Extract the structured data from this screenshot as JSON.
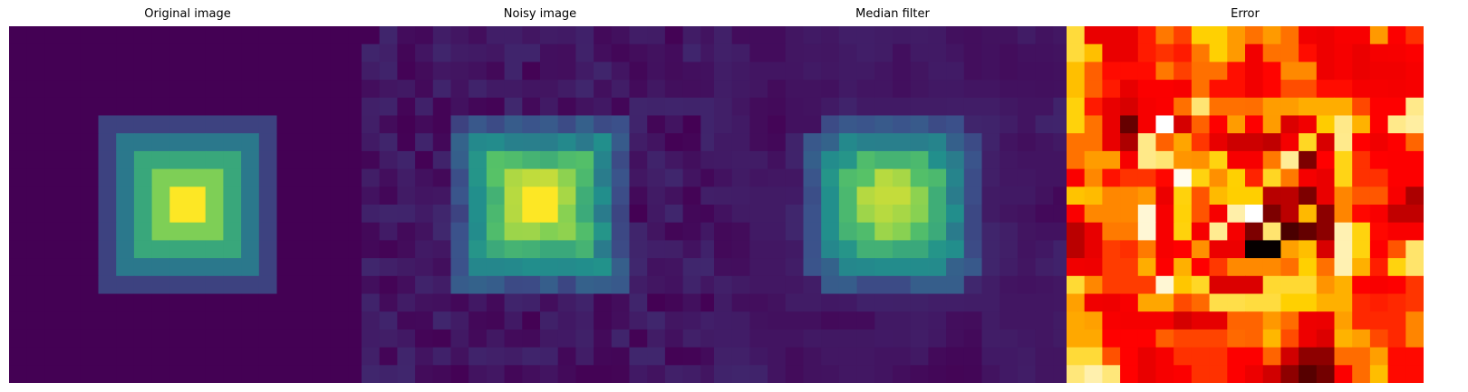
{
  "chart_data": [
    {
      "type": "heatmap",
      "title": "Original image",
      "colormap": "viridis",
      "shape": [
        20,
        20
      ],
      "pattern": "concentric-squares",
      "ring_values": [
        0,
        0.2,
        0.4,
        0.6,
        0.8,
        1.0
      ],
      "value_range": [
        0,
        1
      ],
      "axes_visible": false
    },
    {
      "type": "heatmap",
      "title": "Noisy image",
      "colormap": "viridis",
      "shape": [
        20,
        20
      ],
      "description_of_values": "original plus salt noise",
      "value_range": [
        0,
        1
      ],
      "axes_visible": false
    },
    {
      "type": "heatmap",
      "title": "Median filter",
      "colormap": "viridis",
      "shape": [
        20,
        20
      ],
      "value_range": [
        0,
        1
      ],
      "axes_visible": false
    },
    {
      "type": "heatmap",
      "title": "Error",
      "colormap": "hot",
      "shape": [
        20,
        20
      ],
      "value_range": [
        0,
        0.3
      ],
      "axes_visible": false
    }
  ],
  "colors": {
    "viridis": [
      "#440154",
      "#3b528b",
      "#21918c",
      "#5ec962",
      "#fde725"
    ],
    "hot": [
      "#000000",
      "#e60000",
      "#ff0000",
      "#ffd000",
      "#ffffff"
    ]
  }
}
